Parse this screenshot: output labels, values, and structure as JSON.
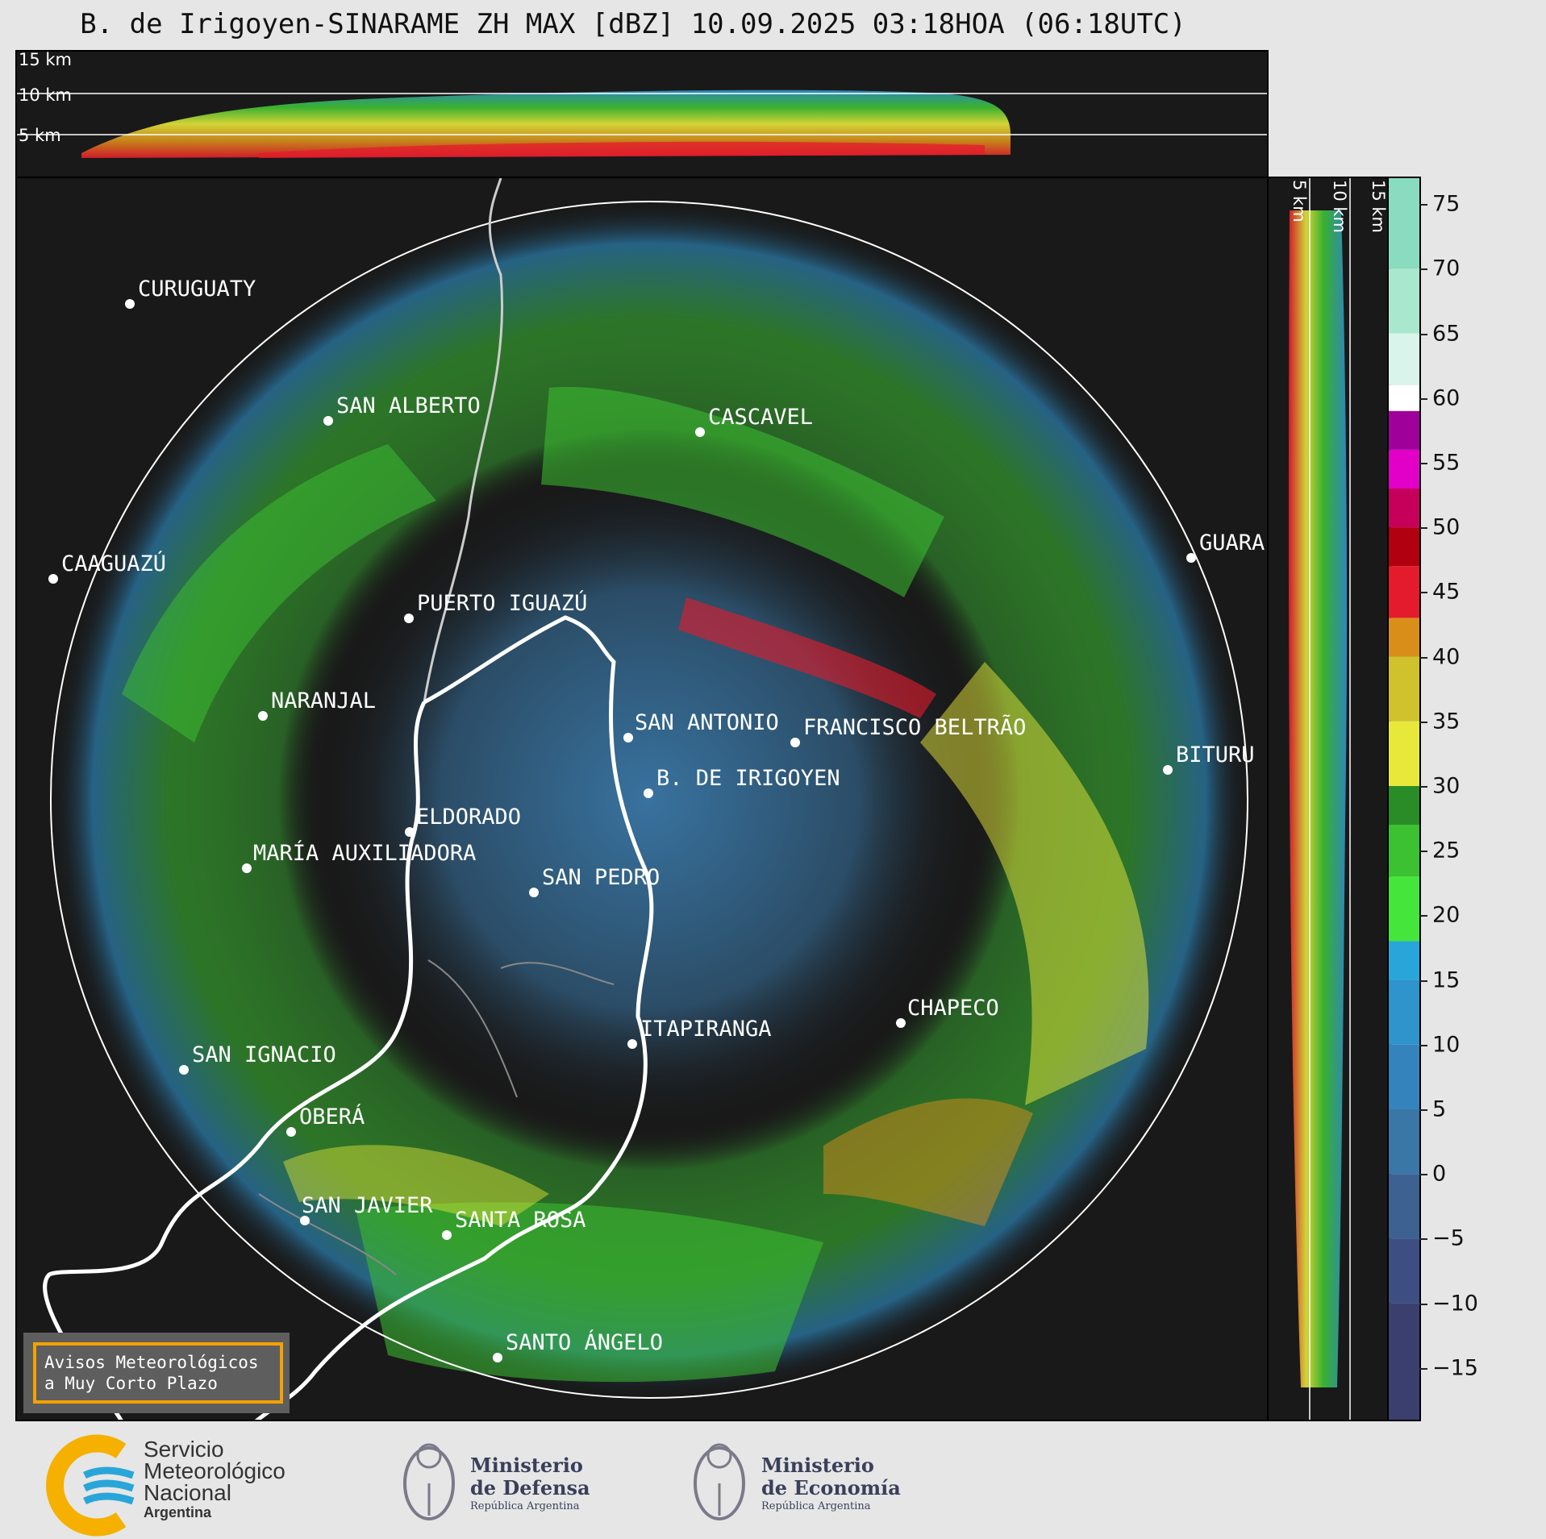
{
  "title": "B. de Irigoyen-SINARAME ZH MAX [dBZ] 10.09.2025 03:18HOA (06:18UTC)",
  "height_labels": {
    "top": [
      "15 km",
      "10 km",
      "5 km"
    ],
    "side": [
      "5 km",
      "10 km",
      "15 km"
    ]
  },
  "colorbar": {
    "tick_labels": [
      "75",
      "70",
      "65",
      "60",
      "55",
      "50",
      "45",
      "40",
      "35",
      "30",
      "25",
      "20",
      "15",
      "10",
      "5",
      "0",
      "−5",
      "−10",
      "−15"
    ],
    "tick_values": [
      75,
      70,
      65,
      60,
      55,
      50,
      45,
      40,
      35,
      30,
      25,
      20,
      15,
      10,
      5,
      0,
      -5,
      -10,
      -15
    ],
    "range": [
      -19,
      77
    ],
    "stops": [
      {
        "min": -19,
        "color": "#3b3f6e"
      },
      {
        "min": -10,
        "color": "#3d4f82"
      },
      {
        "min": -5,
        "color": "#3d6191"
      },
      {
        "min": 0,
        "color": "#3a77a6"
      },
      {
        "min": 5,
        "color": "#3583bc"
      },
      {
        "min": 10,
        "color": "#2f93cc"
      },
      {
        "min": 15,
        "color": "#29a6d9"
      },
      {
        "min": 18,
        "color": "#45e63c"
      },
      {
        "min": 23,
        "color": "#3cc132"
      },
      {
        "min": 27,
        "color": "#2a8c27"
      },
      {
        "min": 30,
        "color": "#e8e83a"
      },
      {
        "min": 35,
        "color": "#cfc22d"
      },
      {
        "min": 40,
        "color": "#d98e1a"
      },
      {
        "min": 43,
        "color": "#e41b2c"
      },
      {
        "min": 47,
        "color": "#b10010"
      },
      {
        "min": 50,
        "color": "#c6005a"
      },
      {
        "min": 53,
        "color": "#e200c8"
      },
      {
        "min": 56,
        "color": "#a0009a"
      },
      {
        "min": 59,
        "color": "#ffffff"
      },
      {
        "min": 61,
        "color": "#d9f4ea"
      },
      {
        "min": 65,
        "color": "#a9e7cf"
      },
      {
        "min": 70,
        "color": "#89dcc0"
      }
    ]
  },
  "cities": [
    {
      "name": "CURUGUATY"
    },
    {
      "name": "SAN ALBERTO"
    },
    {
      "name": "CASCAVEL"
    },
    {
      "name": "CAAGUAZÚ"
    },
    {
      "name": "GUARA"
    },
    {
      "name": "PUERTO IGUAZÚ"
    },
    {
      "name": "NARANJAL"
    },
    {
      "name": "SAN ANTONIO"
    },
    {
      "name": "FRANCISCO BELTRÃO"
    },
    {
      "name": "BITURU"
    },
    {
      "name": "B. DE IRIGOYEN"
    },
    {
      "name": "ELDORADO"
    },
    {
      "name": "MARÍA AUXILIADORA"
    },
    {
      "name": "SAN PEDRO"
    },
    {
      "name": "CHAPECO"
    },
    {
      "name": "ITAPIRANGA"
    },
    {
      "name": "SAN IGNACIO"
    },
    {
      "name": "OBERÁ"
    },
    {
      "name": "SAN JAVIER"
    },
    {
      "name": "SANTA ROSA"
    },
    {
      "name": "SANTO ÁNGELO"
    }
  ],
  "notice": {
    "line1": "Avisos Meteorológicos",
    "line2": "a Muy Corto Plazo",
    "border_color": "#f5a100"
  },
  "logos": {
    "smn": {
      "line1": "Servicio",
      "line2": "Meteorológico",
      "line3": "Nacional",
      "line4": "Argentina"
    },
    "defensa": {
      "line1": "Ministerio",
      "line2": "de Defensa",
      "line3": "República Argentina"
    },
    "economia": {
      "line1": "Ministerio",
      "line2": "de Economía",
      "line3": "República Argentina"
    }
  }
}
